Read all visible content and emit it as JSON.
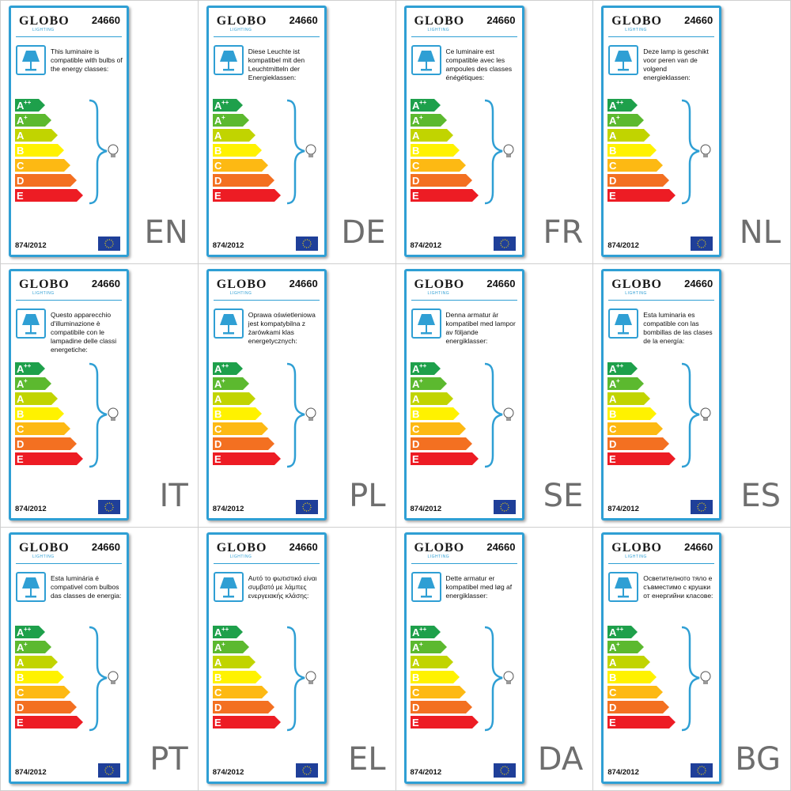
{
  "brand": "GLOBO",
  "brand_sub": "LIGHTING",
  "model": "24660",
  "regulation": "874/2012",
  "energy_classes": [
    {
      "letter": "A",
      "plus": "++",
      "color": "#1ea04b"
    },
    {
      "letter": "A",
      "plus": "+",
      "color": "#5cb92f"
    },
    {
      "letter": "A",
      "plus": "",
      "color": "#c1d400"
    },
    {
      "letter": "B",
      "plus": "",
      "color": "#fff200"
    },
    {
      "letter": "C",
      "plus": "",
      "color": "#fdb913"
    },
    {
      "letter": "D",
      "plus": "",
      "color": "#f37021"
    },
    {
      "letter": "E",
      "plus": "",
      "color": "#ed1c24"
    }
  ],
  "accent_color": "#2f9fd4",
  "labels": [
    {
      "lang": "EN",
      "text": "This luminaire is compatible with bulbs of the energy classes:"
    },
    {
      "lang": "DE",
      "text": "Diese Leuchte ist kompatibel mit den Leuchtmitteln der Energieklassen:"
    },
    {
      "lang": "FR",
      "text": "Ce luminaire est compatible avec les ampoules des classes énégétiques:"
    },
    {
      "lang": "NL",
      "text": "Deze lamp is geschikt voor peren van de volgend energieklassen:"
    },
    {
      "lang": "IT",
      "text": "Questo apparecchio d'illuminazione è compatibile con le lampadine delle classi energetiche:"
    },
    {
      "lang": "PL",
      "text": "Oprawa oświetleniowa jest kompatybilna z żarówkami klas energetycznych:"
    },
    {
      "lang": "SE",
      "text": "Denna armatur är kompatibel med lampor av följande energiklasser:"
    },
    {
      "lang": "ES",
      "text": "Esta luminaria es compatible con las bombillas de las clases de la energía:"
    },
    {
      "lang": "PT",
      "text": "Esta luminária é compativel com bulbos das classes de energia:"
    },
    {
      "lang": "EL",
      "text": "Αυτό το φωτιστικό είναι συμβατό με λάμπες ενεργειακής κλάσης:"
    },
    {
      "lang": "DA",
      "text": "Dette armatur er kompatibel med løg af energiklasser:"
    },
    {
      "lang": "BG",
      "text": "Осветителното тяло е съвместимо с крушки от енергийни класове:"
    }
  ]
}
